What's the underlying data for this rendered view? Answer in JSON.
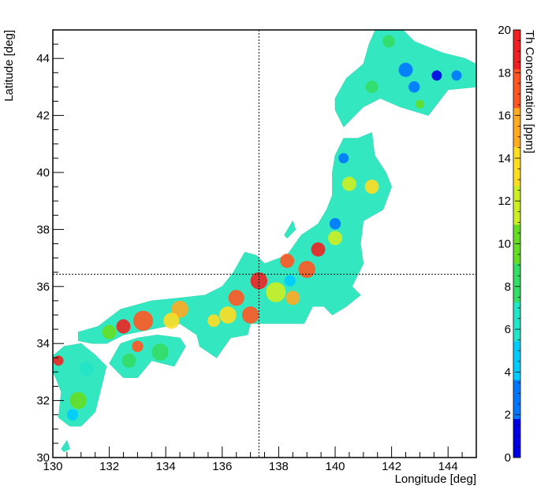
{
  "chart_data": {
    "type": "heatmap",
    "title": "",
    "xlabel": "Longitude [deg]",
    "ylabel": "Latitude [deg]",
    "colorbar_label": "Th Concentration [ppm]",
    "xlim": [
      130,
      145
    ],
    "ylim": [
      30,
      45
    ],
    "zlim": [
      0,
      20
    ],
    "x_ticks": [
      130,
      132,
      134,
      136,
      138,
      140,
      142,
      144
    ],
    "y_ticks": [
      30,
      32,
      34,
      36,
      38,
      40,
      42,
      44
    ],
    "z_ticks": [
      0,
      2,
      4,
      6,
      8,
      10,
      12,
      14,
      16,
      18,
      20
    ],
    "crosshair": {
      "x": 137.3,
      "y": 36.43
    },
    "palette": [
      "#0000e6",
      "#0077ff",
      "#00ccff",
      "#22e6c8",
      "#33dd66",
      "#66dd22",
      "#ccee22",
      "#ffdd22",
      "#ffaa22",
      "#ff5522",
      "#ee2222"
    ],
    "background_fill": "#33e8c0",
    "regions": [
      {
        "name": "Hokkaido",
        "outline": [
          [
            140.0,
            42.6
          ],
          [
            140.4,
            43.3
          ],
          [
            141.0,
            43.8
          ],
          [
            141.2,
            44.5
          ],
          [
            141.6,
            45.4
          ],
          [
            142.2,
            45.2
          ],
          [
            142.8,
            44.6
          ],
          [
            143.8,
            44.2
          ],
          [
            144.6,
            44.0
          ],
          [
            145.4,
            43.6
          ],
          [
            145.0,
            43.0
          ],
          [
            144.0,
            42.9
          ],
          [
            143.3,
            42.0
          ],
          [
            142.3,
            42.3
          ],
          [
            141.6,
            42.6
          ],
          [
            141.0,
            42.3
          ],
          [
            140.3,
            41.6
          ],
          [
            140.0,
            42.2
          ]
        ],
        "spots": [
          {
            "x": 141.9,
            "y": 44.6,
            "v": 8.5,
            "r": 0.22
          },
          {
            "x": 142.5,
            "y": 43.6,
            "v": 3.0,
            "r": 0.25
          },
          {
            "x": 142.8,
            "y": 43.0,
            "v": 2.0,
            "r": 0.2
          },
          {
            "x": 143.6,
            "y": 43.4,
            "v": 1.5,
            "r": 0.18
          },
          {
            "x": 144.3,
            "y": 43.4,
            "v": 2.5,
            "r": 0.18
          },
          {
            "x": 141.3,
            "y": 43.0,
            "v": 9.0,
            "r": 0.22
          },
          {
            "x": 143.0,
            "y": 42.4,
            "v": 10.0,
            "r": 0.15
          }
        ]
      },
      {
        "name": "Honshu",
        "outline": [
          [
            130.9,
            34.4
          ],
          [
            131.6,
            34.6
          ],
          [
            132.4,
            35.2
          ],
          [
            133.5,
            35.5
          ],
          [
            134.5,
            35.6
          ],
          [
            135.4,
            35.7
          ],
          [
            136.0,
            36.0
          ],
          [
            136.4,
            36.5
          ],
          [
            136.8,
            37.2
          ],
          [
            137.2,
            37.1
          ],
          [
            137.5,
            36.8
          ],
          [
            138.3,
            37.1
          ],
          [
            138.8,
            37.8
          ],
          [
            139.4,
            38.2
          ],
          [
            139.7,
            38.7
          ],
          [
            139.9,
            39.2
          ],
          [
            139.9,
            40.0
          ],
          [
            140.0,
            40.6
          ],
          [
            140.3,
            41.2
          ],
          [
            140.8,
            41.2
          ],
          [
            141.3,
            41.4
          ],
          [
            141.4,
            40.6
          ],
          [
            141.8,
            40.0
          ],
          [
            142.0,
            39.5
          ],
          [
            141.7,
            38.7
          ],
          [
            141.0,
            38.3
          ],
          [
            140.9,
            37.5
          ],
          [
            141.0,
            36.8
          ],
          [
            140.6,
            36.0
          ],
          [
            140.9,
            35.7
          ],
          [
            140.4,
            35.3
          ],
          [
            139.9,
            35.0
          ],
          [
            139.6,
            35.3
          ],
          [
            139.2,
            35.3
          ],
          [
            138.9,
            34.7
          ],
          [
            138.4,
            34.7
          ],
          [
            137.5,
            34.7
          ],
          [
            137.0,
            34.7
          ],
          [
            136.9,
            34.3
          ],
          [
            136.3,
            34.2
          ],
          [
            135.8,
            33.5
          ],
          [
            135.2,
            33.9
          ],
          [
            135.1,
            34.3
          ],
          [
            134.5,
            34.7
          ],
          [
            133.5,
            34.5
          ],
          [
            132.5,
            34.3
          ],
          [
            131.9,
            34.0
          ],
          [
            131.4,
            34.0
          ],
          [
            130.9,
            34.1
          ]
        ],
        "spots": [
          {
            "x": 136.5,
            "y": 35.6,
            "v": 18.0,
            "r": 0.28
          },
          {
            "x": 137.3,
            "y": 36.2,
            "v": 19.0,
            "r": 0.3
          },
          {
            "x": 137.0,
            "y": 35.0,
            "v": 17.0,
            "r": 0.3
          },
          {
            "x": 136.2,
            "y": 35.0,
            "v": 13.0,
            "r": 0.3
          },
          {
            "x": 135.7,
            "y": 34.8,
            "v": 14.0,
            "r": 0.22
          },
          {
            "x": 138.3,
            "y": 36.9,
            "v": 18.0,
            "r": 0.25
          },
          {
            "x": 139.0,
            "y": 36.6,
            "v": 17.0,
            "r": 0.3
          },
          {
            "x": 139.4,
            "y": 37.3,
            "v": 18.5,
            "r": 0.25
          },
          {
            "x": 137.9,
            "y": 35.8,
            "v": 11.0,
            "r": 0.35
          },
          {
            "x": 138.5,
            "y": 35.6,
            "v": 15.0,
            "r": 0.25
          },
          {
            "x": 138.4,
            "y": 36.2,
            "v": 4.5,
            "r": 0.2
          },
          {
            "x": 133.2,
            "y": 34.8,
            "v": 17.5,
            "r": 0.35
          },
          {
            "x": 132.5,
            "y": 34.6,
            "v": 19.0,
            "r": 0.25
          },
          {
            "x": 134.5,
            "y": 35.2,
            "v": 16.0,
            "r": 0.3
          },
          {
            "x": 134.2,
            "y": 34.8,
            "v": 13.0,
            "r": 0.28
          },
          {
            "x": 132.0,
            "y": 34.4,
            "v": 10.0,
            "r": 0.25
          },
          {
            "x": 140.5,
            "y": 39.6,
            "v": 12.5,
            "r": 0.25
          },
          {
            "x": 141.3,
            "y": 39.5,
            "v": 13.0,
            "r": 0.25
          },
          {
            "x": 140.0,
            "y": 38.2,
            "v": 3.0,
            "r": 0.2
          },
          {
            "x": 140.3,
            "y": 40.5,
            "v": 2.5,
            "r": 0.18
          },
          {
            "x": 140.0,
            "y": 37.7,
            "v": 11.0,
            "r": 0.25
          }
        ]
      },
      {
        "name": "Shikoku",
        "outline": [
          [
            132.0,
            33.3
          ],
          [
            132.4,
            34.0
          ],
          [
            133.0,
            34.2
          ],
          [
            133.7,
            34.3
          ],
          [
            134.5,
            34.2
          ],
          [
            134.7,
            33.9
          ],
          [
            134.3,
            33.2
          ],
          [
            133.5,
            33.4
          ],
          [
            133.0,
            32.8
          ],
          [
            132.5,
            32.8
          ]
        ],
        "spots": [
          {
            "x": 133.0,
            "y": 33.9,
            "v": 17.0,
            "r": 0.2
          },
          {
            "x": 133.8,
            "y": 33.7,
            "v": 8.5,
            "r": 0.3
          },
          {
            "x": 132.7,
            "y": 33.4,
            "v": 9.0,
            "r": 0.25
          }
        ]
      },
      {
        "name": "Kyushu",
        "outline": [
          [
            129.8,
            33.4
          ],
          [
            130.4,
            33.9
          ],
          [
            131.0,
            34.0
          ],
          [
            131.5,
            33.6
          ],
          [
            131.9,
            33.2
          ],
          [
            131.7,
            32.4
          ],
          [
            131.5,
            31.6
          ],
          [
            131.0,
            31.1
          ],
          [
            130.6,
            31.1
          ],
          [
            130.2,
            31.4
          ],
          [
            130.3,
            32.3
          ],
          [
            130.1,
            32.8
          ]
        ],
        "spots": [
          {
            "x": 130.2,
            "y": 33.4,
            "v": 18.5,
            "r": 0.18
          },
          {
            "x": 130.9,
            "y": 32.0,
            "v": 10.0,
            "r": 0.3
          },
          {
            "x": 131.2,
            "y": 33.1,
            "v": 5.5,
            "r": 0.25
          },
          {
            "x": 130.7,
            "y": 31.5,
            "v": 5.0,
            "r": 0.2
          }
        ]
      },
      {
        "name": "Sado",
        "outline": [
          [
            138.2,
            37.8
          ],
          [
            138.5,
            38.3
          ],
          [
            138.6,
            38.0
          ],
          [
            138.3,
            37.7
          ]
        ],
        "spots": []
      },
      {
        "name": "Tanegashima",
        "outline": [
          [
            130.3,
            30.3
          ],
          [
            130.5,
            30.6
          ],
          [
            130.6,
            30.3
          ],
          [
            130.4,
            30.2
          ]
        ],
        "spots": []
      }
    ]
  }
}
